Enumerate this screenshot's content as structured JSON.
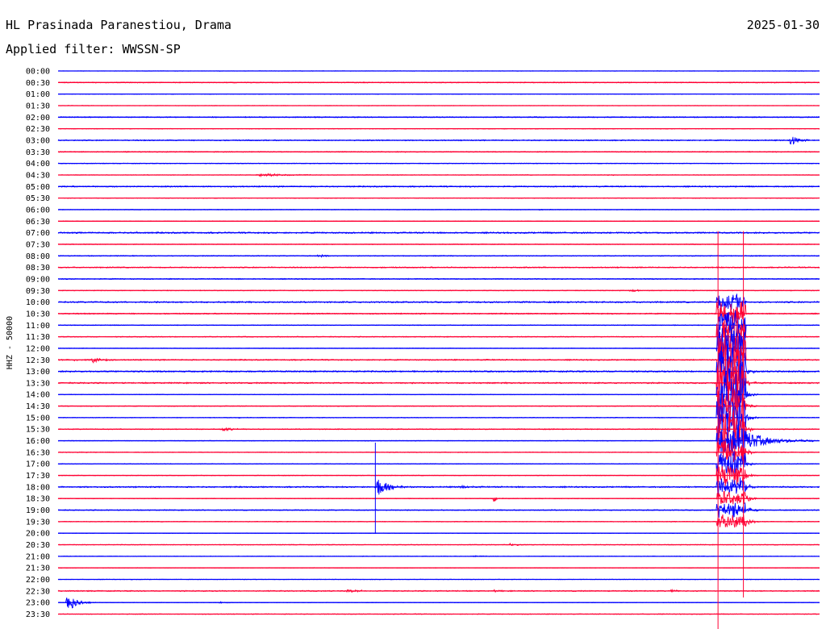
{
  "header": {
    "station": "HL Prasinada Paranestiou, Drama",
    "date": "2025-01-30",
    "filter": "Applied filter: WWSSN-SP"
  },
  "chart_data": {
    "type": "line",
    "subtype": "helicorder",
    "ylabel": "HHZ - 50000",
    "row_labels": [
      "00:00",
      "00:30",
      "01:00",
      "01:30",
      "02:00",
      "02:30",
      "03:00",
      "03:30",
      "04:00",
      "04:30",
      "05:00",
      "05:30",
      "06:00",
      "06:30",
      "07:00",
      "07:30",
      "08:00",
      "08:30",
      "09:00",
      "09:30",
      "10:00",
      "10:30",
      "11:00",
      "11:30",
      "12:00",
      "12:30",
      "13:00",
      "13:30",
      "14:00",
      "14:30",
      "15:00",
      "15:30",
      "16:00",
      "16:30",
      "17:00",
      "17:30",
      "18:00",
      "18:30",
      "19:00",
      "19:30",
      "20:00",
      "20:30",
      "21:00",
      "21:30",
      "22:00",
      "22:30",
      "23:00",
      "23:30"
    ],
    "row_minutes": 30,
    "colors": {
      "even_row": "#0000ff",
      "odd_row": "#ff0033"
    },
    "noise_level": [
      0.4,
      0.8,
      0.4,
      0.4,
      0.9,
      0.5,
      0.9,
      0.8,
      0.6,
      0.5,
      1.0,
      0.5,
      0.5,
      0.5,
      1.2,
      0.6,
      0.8,
      0.9,
      0.8,
      0.7,
      1.2,
      0.9,
      0.7,
      0.7,
      0.5,
      1.0,
      1.2,
      1.1,
      0.6,
      0.6,
      0.6,
      0.8,
      0.5,
      0.6,
      0.6,
      0.5,
      1.1,
      0.6,
      0.8,
      0.6,
      0.5,
      0.6,
      0.5,
      0.5,
      0.5,
      0.9,
      0.5,
      0.6
    ],
    "events": [
      {
        "row": 6,
        "minute": 28.8,
        "amplitude": 1.9,
        "duration": 0.9,
        "decay": 0.25
      },
      {
        "row": 9,
        "minute": 7.8,
        "amplitude": 0.55,
        "duration": 2.2,
        "decay": 0.8
      },
      {
        "row": 9,
        "minute": 21.6,
        "amplitude": 0.2,
        "duration": 0.6,
        "decay": 0.3
      },
      {
        "row": 12,
        "minute": 18.9,
        "amplitude": 0.12,
        "duration": 1.0,
        "decay": 0.5
      },
      {
        "row": 14,
        "minute": 3.0,
        "amplitude": 0.3,
        "duration": 0.4,
        "decay": 0.2
      },
      {
        "row": 16,
        "minute": 10.2,
        "amplitude": 0.45,
        "duration": 0.8,
        "decay": 0.3
      },
      {
        "row": 19,
        "minute": 22.5,
        "amplitude": 0.35,
        "duration": 0.9,
        "decay": 0.35
      },
      {
        "row": 22,
        "minute": 27.0,
        "amplitude": 0.2,
        "duration": 0.7,
        "decay": 0.3
      },
      {
        "row": 25,
        "minute": 0.5,
        "amplitude": 0.2,
        "duration": 1.0,
        "decay": 0.4
      },
      {
        "row": 25,
        "minute": 1.3,
        "amplitude": 0.75,
        "duration": 1.2,
        "decay": 0.35
      },
      {
        "row": 25,
        "minute": 16.3,
        "amplitude": 0.12,
        "duration": 0.9,
        "decay": 0.4
      },
      {
        "row": 30,
        "minute": 7.1,
        "amplitude": 0.25,
        "duration": 0.4,
        "decay": 0.2
      },
      {
        "row": 31,
        "minute": 6.4,
        "amplitude": 0.6,
        "duration": 1.2,
        "decay": 0.35
      },
      {
        "row": 33,
        "minute": 0.8,
        "amplitude": 0.15,
        "duration": 0.6,
        "decay": 0.3
      },
      {
        "row": 36,
        "minute": 12.5,
        "amplitude": 3.0,
        "duration": 1.8,
        "decay": 0.35
      },
      {
        "row": 36,
        "minute": 15.8,
        "amplitude": 0.45,
        "duration": 1.0,
        "decay": 0.35
      },
      {
        "row": 37,
        "minute": 17.1,
        "amplitude": 1.3,
        "duration": 0.5,
        "decay": 0.15
      },
      {
        "row": 41,
        "minute": 17.7,
        "amplitude": 0.35,
        "duration": 0.9,
        "decay": 0.35
      },
      {
        "row": 42,
        "minute": 16.3,
        "amplitude": 0.15,
        "duration": 1.0,
        "decay": 0.5
      },
      {
        "row": 45,
        "minute": 11.3,
        "amplitude": 0.35,
        "duration": 2.0,
        "decay": 0.6
      },
      {
        "row": 45,
        "minute": 17.1,
        "amplitude": 0.25,
        "duration": 0.7,
        "decay": 0.35
      },
      {
        "row": 45,
        "minute": 24.1,
        "amplitude": 0.35,
        "duration": 0.9,
        "decay": 0.35
      },
      {
        "row": 46,
        "minute": 0.3,
        "amplitude": 3.3,
        "duration": 1.8,
        "decay": 0.3
      },
      {
        "row": 46,
        "minute": 6.3,
        "amplitude": 0.2,
        "duration": 0.5,
        "decay": 0.3
      },
      {
        "row": 19,
        "minute": 26.0,
        "amplitude": 0.05,
        "duration": 0.3,
        "decay": 0.2
      }
    ],
    "large_event": {
      "start_row": 20,
      "start_minute": 26.0,
      "peak_row": 25,
      "end_row": 39,
      "end_minute": 27.0,
      "peak_amplitude": 7.5,
      "spike_column_minutes": [
        26.0,
        27.0
      ],
      "spike_top_row": 14,
      "spike_bottom_row": 48,
      "coda_row": 32,
      "coda_end_minute": 29.8
    }
  }
}
